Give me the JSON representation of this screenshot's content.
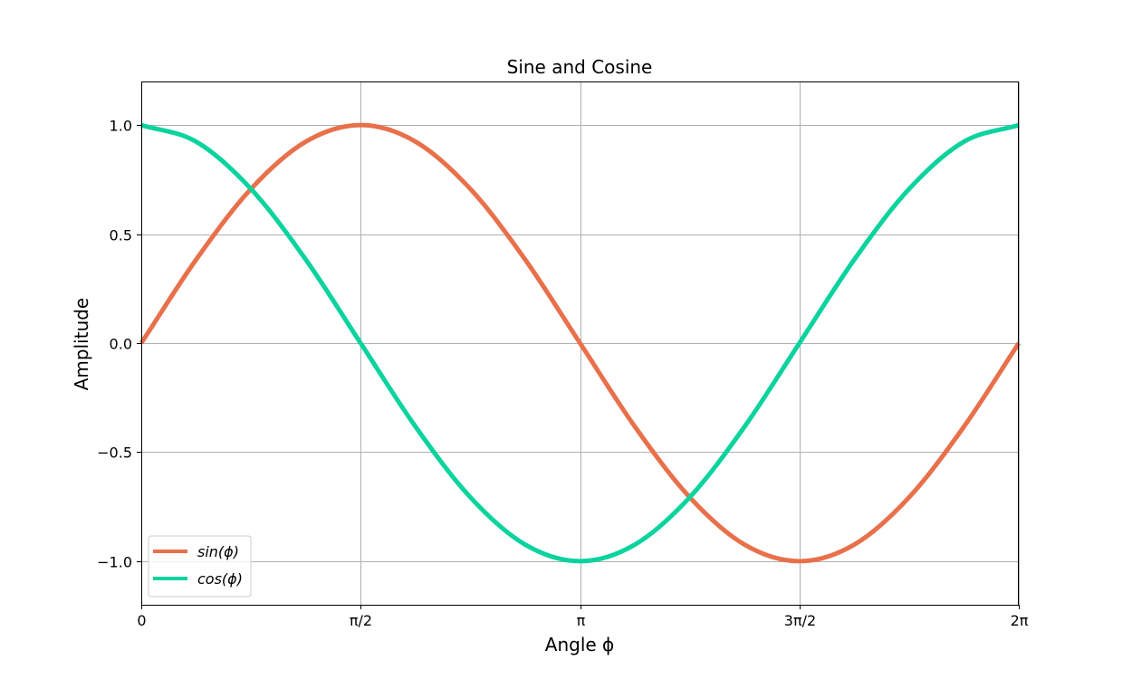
{
  "chart_data": {
    "type": "line",
    "title": "Sine and Cosine",
    "xlabel": "Angle ϕ",
    "ylabel": "Amplitude",
    "xlim": [
      0,
      6.283185307179586
    ],
    "ylim": [
      -1.2,
      1.2
    ],
    "grid": true,
    "legend_position": "lower-left",
    "x_ticks": [
      {
        "value": 0,
        "label": "0"
      },
      {
        "value": 1.5707963267948966,
        "label": "π/2"
      },
      {
        "value": 3.141592653589793,
        "label": "π"
      },
      {
        "value": 4.71238898038469,
        "label": "3π/2"
      },
      {
        "value": 6.283185307179586,
        "label": "2π"
      }
    ],
    "y_ticks": [
      {
        "value": 1.0,
        "label": "1.0"
      },
      {
        "value": 0.5,
        "label": "0.5"
      },
      {
        "value": 0.0,
        "label": "0.0"
      },
      {
        "value": -0.5,
        "label": "−0.5"
      },
      {
        "value": -1.0,
        "label": "−1.0"
      }
    ],
    "x": [
      0,
      0.3927,
      0.7854,
      1.1781,
      1.5708,
      1.9635,
      2.3562,
      2.7489,
      3.1416,
      3.5343,
      3.927,
      4.3197,
      4.7124,
      5.1051,
      5.4978,
      5.8905,
      6.2832
    ],
    "series": [
      {
        "name": "sin(ϕ)",
        "color": "#e8704a",
        "values": [
          0,
          0.383,
          0.707,
          0.924,
          1.0,
          0.924,
          0.707,
          0.383,
          0,
          -0.383,
          -0.707,
          -0.924,
          -1.0,
          -0.924,
          -0.707,
          -0.383,
          0
        ]
      },
      {
        "name": "cos(ϕ)",
        "color": "#0ad39e",
        "values": [
          1.0,
          0.924,
          0.707,
          0.383,
          0,
          -0.383,
          -0.707,
          -0.924,
          -1.0,
          -0.924,
          -0.707,
          -0.383,
          0,
          0.383,
          0.707,
          0.924,
          1.0
        ]
      }
    ]
  }
}
